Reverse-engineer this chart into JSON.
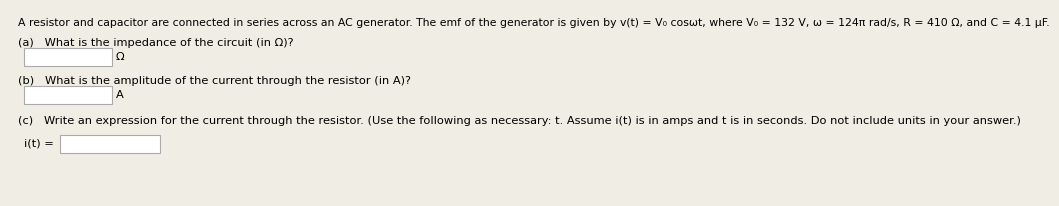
{
  "bg_color": "#f0ede4",
  "text_color": "#000000",
  "title_line": "A resistor and capacitor are connected in series across an AC generator. The emf of the generator is given by v(t) = V₀ cosωt, where V₀ = 132 V, ω = 124π rad/s, R = 410 Ω, and C = 4.1 μF.",
  "part_a_label": "(a)   What is the impedance of the circuit (in Ω)?",
  "part_b_label": "(b)   What is the amplitude of the current through the resistor (in A)?",
  "part_c_label": "(c)   Write an expression for the current through the resistor. (Use the following as necessary: t. Assume i(t) is in amps and t is in seconds. Do not include units in your answer.)",
  "part_c_eq": "i(t) =",
  "box_face_color": "#ffffff",
  "box_edge_color": "#aaaaaa",
  "unit_a": "Ω",
  "unit_b": "A",
  "font_size_title": 7.8,
  "font_size_body": 8.2
}
